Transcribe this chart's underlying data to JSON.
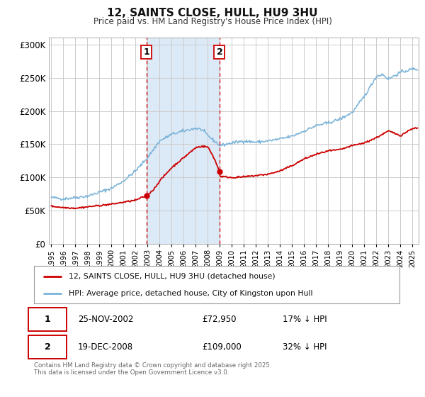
{
  "title": "12, SAINTS CLOSE, HULL, HU9 3HU",
  "subtitle": "Price paid vs. HM Land Registry's House Price Index (HPI)",
  "background_color": "#ffffff",
  "plot_bg_color": "#ffffff",
  "grid_color": "#cccccc",
  "shade_color": "#dce9f7",
  "hpi_color": "#7ab3d8",
  "price_color": "#cc0000",
  "purchase1_date_x": 2002.9,
  "purchase1_price": 72950,
  "purchase2_date_x": 2008.97,
  "purchase2_price": 109000,
  "xmin": 1994.8,
  "xmax": 2025.5,
  "ymin": 0,
  "ymax": 310000,
  "yticks": [
    0,
    50000,
    100000,
    150000,
    200000,
    250000,
    300000
  ],
  "ytick_labels": [
    "£0",
    "£50K",
    "£100K",
    "£150K",
    "£200K",
    "£250K",
    "£300K"
  ],
  "legend_label1": "12, SAINTS CLOSE, HULL, HU9 3HU (detached house)",
  "legend_label2": "HPI: Average price, detached house, City of Kingston upon Hull",
  "annotation1": "25-NOV-2002",
  "annotation1_price": "£72,950",
  "annotation1_pct": "17% ↓ HPI",
  "annotation2": "19-DEC-2008",
  "annotation2_price": "£109,000",
  "annotation2_pct": "32% ↓ HPI",
  "footnote": "Contains HM Land Registry data © Crown copyright and database right 2025.\nThis data is licensed under the Open Government Licence v3.0."
}
